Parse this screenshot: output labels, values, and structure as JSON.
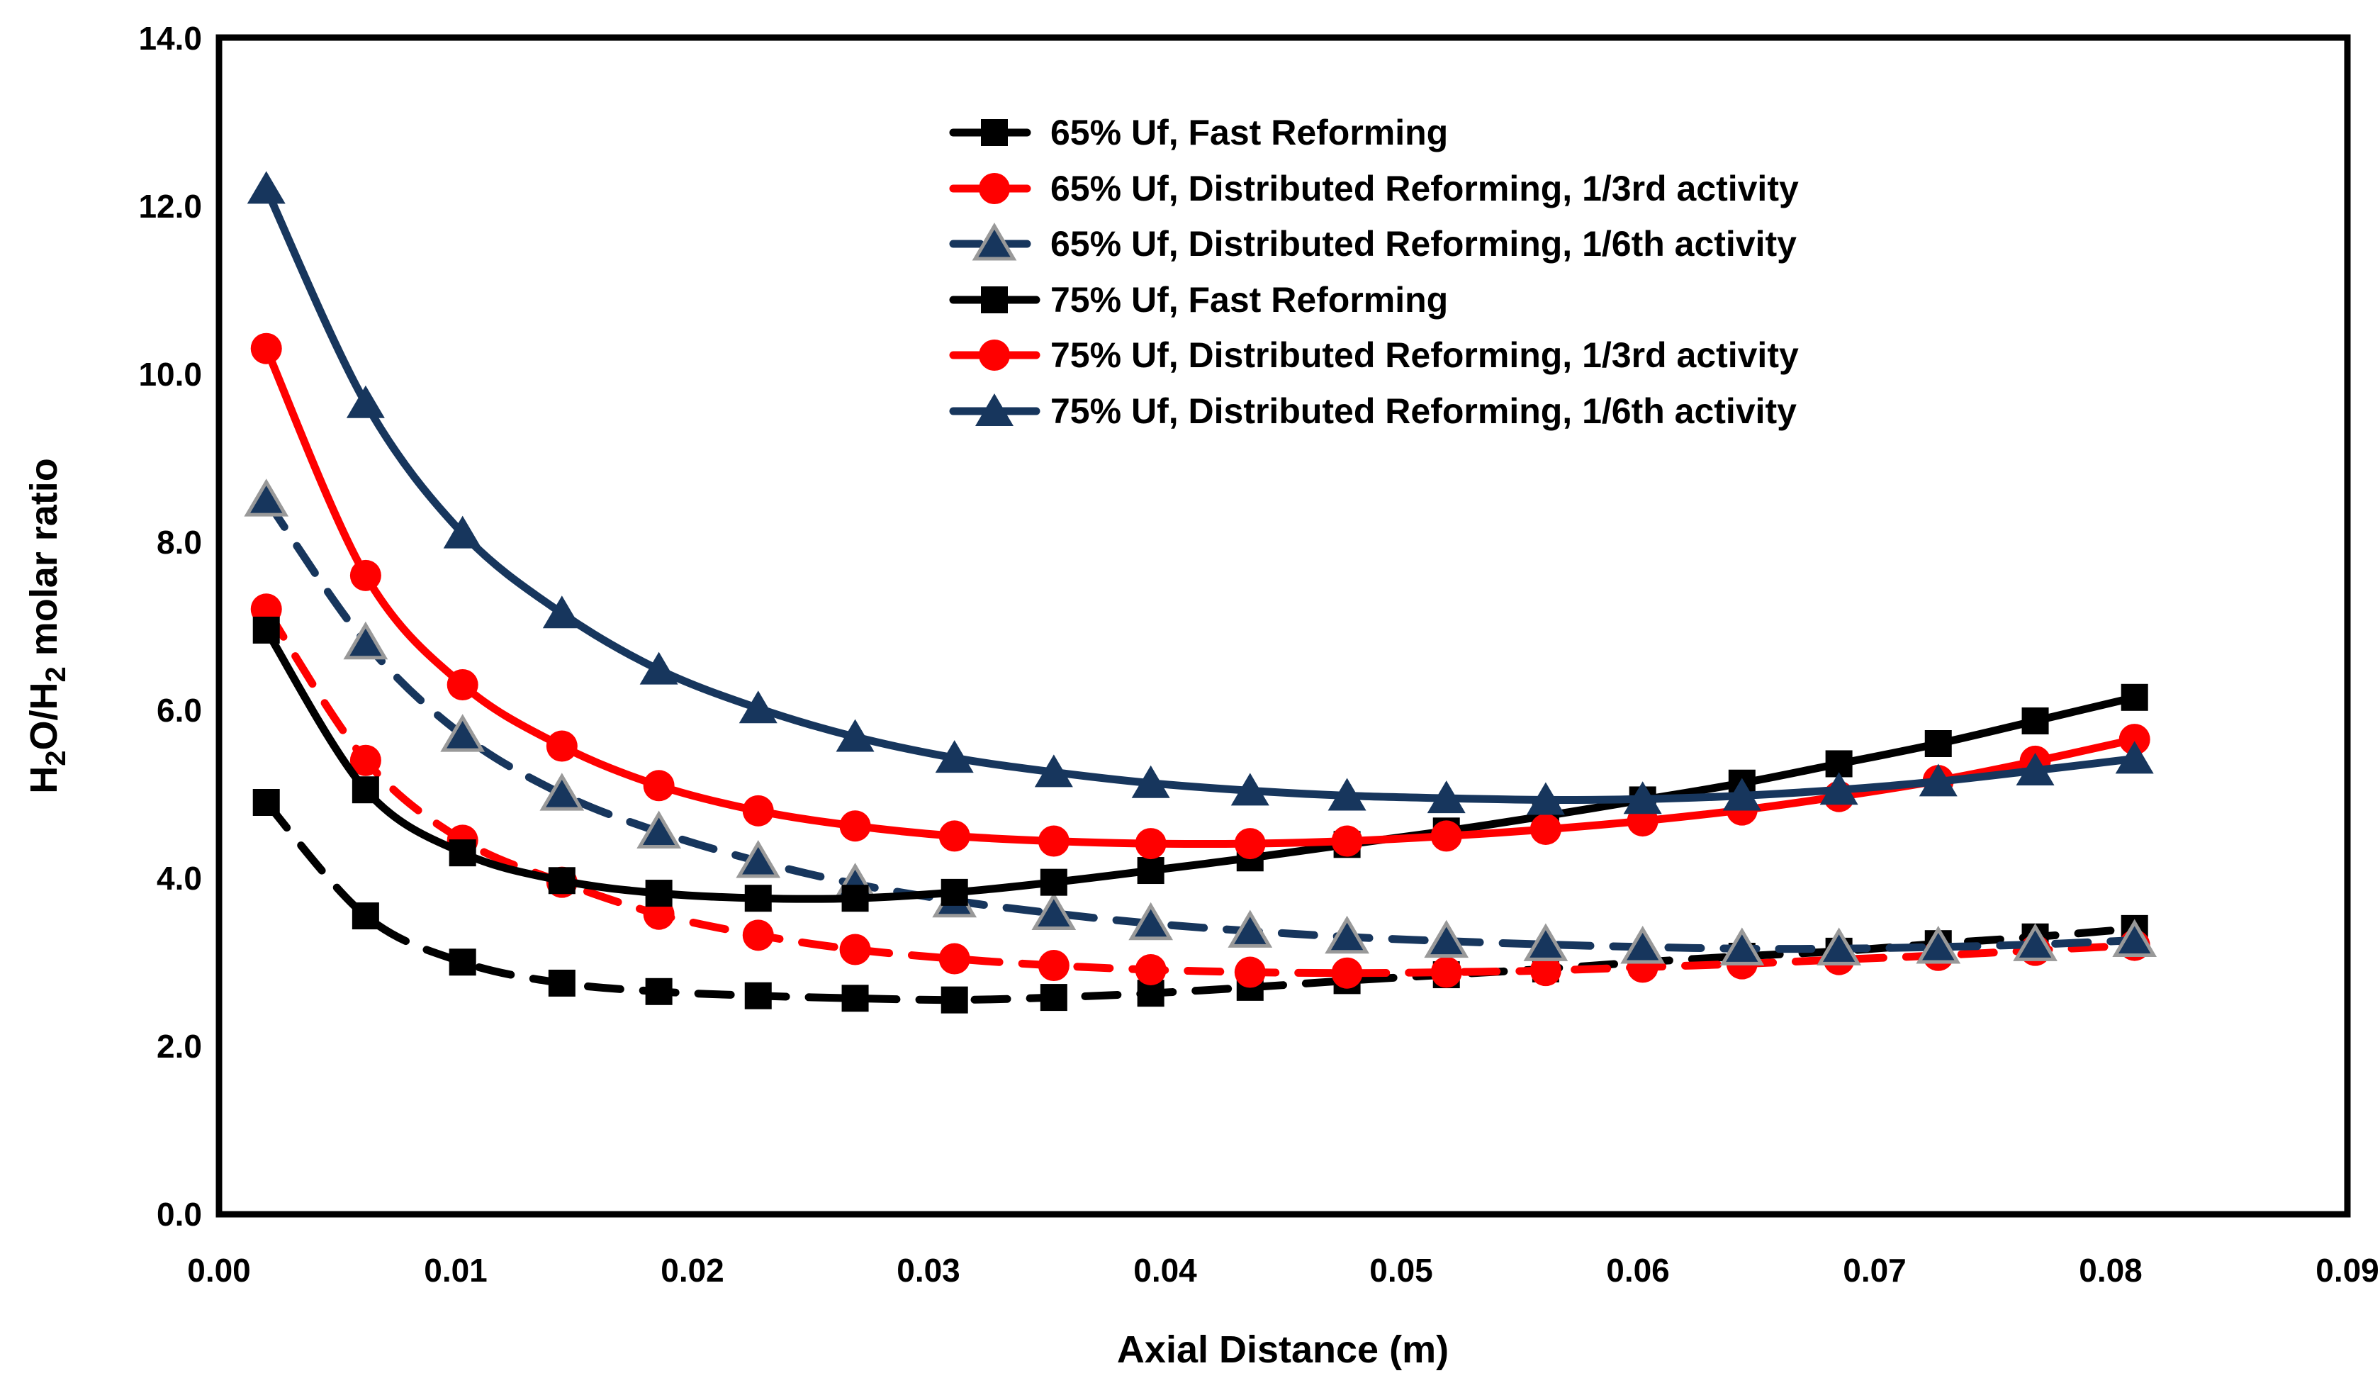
{
  "figure": {
    "background": "#FFFFFF",
    "border_color": "#000000"
  },
  "axes": {
    "xlabel": "Axial Distance (m)",
    "ylabel": "H2O/H2 molar ratio",
    "ylabel_parts": [
      "H",
      "2",
      "O/H",
      "2",
      " molar ratio"
    ]
  },
  "chart_data": {
    "type": "line",
    "title": "",
    "xlabel": "Axial Distance (m)",
    "ylabel": "H2O/H2 molar ratio",
    "xlim": [
      0,
      0.09
    ],
    "ylim": [
      0,
      14
    ],
    "grid": false,
    "legend_position": "upper right inside",
    "xtick_labels": [
      "0.00",
      "0.01",
      "0.02",
      "0.03",
      "0.04",
      "0.05",
      "0.06",
      "0.07",
      "0.08",
      "0.09"
    ],
    "ytick_labels": [
      "0.0",
      "2.0",
      "4.0",
      "6.0",
      "8.0",
      "10.0",
      "12.0",
      "14.0"
    ],
    "x": [
      0.002,
      0.0062,
      0.0103,
      0.0145,
      0.0186,
      0.0228,
      0.0269,
      0.0311,
      0.0353,
      0.0394,
      0.0436,
      0.0477,
      0.0519,
      0.0561,
      0.0602,
      0.0644,
      0.0685,
      0.0727,
      0.0768,
      0.081
    ],
    "series": [
      {
        "name": "65% Uf, Fast Reforming",
        "color": "#000000",
        "dashed": true,
        "marker": "square",
        "marker_outline": "none",
        "values": [
          4.9,
          3.55,
          3.0,
          2.75,
          2.65,
          2.6,
          2.57,
          2.55,
          2.58,
          2.63,
          2.7,
          2.78,
          2.85,
          2.92,
          3.0,
          3.07,
          3.13,
          3.22,
          3.3,
          3.4
        ]
      },
      {
        "name": "65% Uf, Distributed Reforming, 1/3rd activity",
        "color": "#FF0000",
        "dashed": true,
        "marker": "circle",
        "marker_outline": "none",
        "values": [
          7.2,
          5.4,
          4.45,
          3.95,
          3.57,
          3.32,
          3.15,
          3.04,
          2.96,
          2.91,
          2.88,
          2.87,
          2.88,
          2.9,
          2.94,
          2.98,
          3.03,
          3.08,
          3.14,
          3.2
        ]
      },
      {
        "name": "65% Uf, Distributed Reforming, 1/6th activity",
        "color": "#17365D",
        "dashed": true,
        "marker": "triangle",
        "marker_outline": "#999999",
        "values": [
          8.5,
          6.8,
          5.7,
          5.0,
          4.55,
          4.2,
          3.93,
          3.73,
          3.58,
          3.46,
          3.37,
          3.3,
          3.25,
          3.21,
          3.18,
          3.16,
          3.16,
          3.18,
          3.21,
          3.26
        ]
      },
      {
        "name": "75% Uf, Fast Reforming",
        "color": "#000000",
        "dashed": false,
        "marker": "square",
        "marker_outline": "none",
        "values": [
          6.95,
          5.05,
          4.3,
          3.97,
          3.82,
          3.76,
          3.76,
          3.83,
          3.95,
          4.09,
          4.24,
          4.4,
          4.56,
          4.74,
          4.93,
          5.13,
          5.36,
          5.6,
          5.87,
          6.15
        ]
      },
      {
        "name": "75% Uf, Distributed Reforming, 1/3rd activity",
        "color": "#FF0000",
        "dashed": false,
        "marker": "circle",
        "marker_outline": "none",
        "values": [
          10.3,
          7.6,
          6.3,
          5.57,
          5.1,
          4.8,
          4.62,
          4.5,
          4.44,
          4.41,
          4.41,
          4.44,
          4.5,
          4.58,
          4.68,
          4.81,
          4.97,
          5.16,
          5.39,
          5.65
        ]
      },
      {
        "name": "75% Uf, Distributed Reforming, 1/6th activity",
        "color": "#17365D",
        "dashed": false,
        "marker": "triangle",
        "marker_outline": "none",
        "values": [
          12.2,
          9.65,
          8.1,
          7.15,
          6.48,
          6.02,
          5.68,
          5.43,
          5.26,
          5.13,
          5.04,
          4.98,
          4.95,
          4.93,
          4.94,
          4.98,
          5.05,
          5.15,
          5.28,
          5.42
        ]
      }
    ]
  }
}
